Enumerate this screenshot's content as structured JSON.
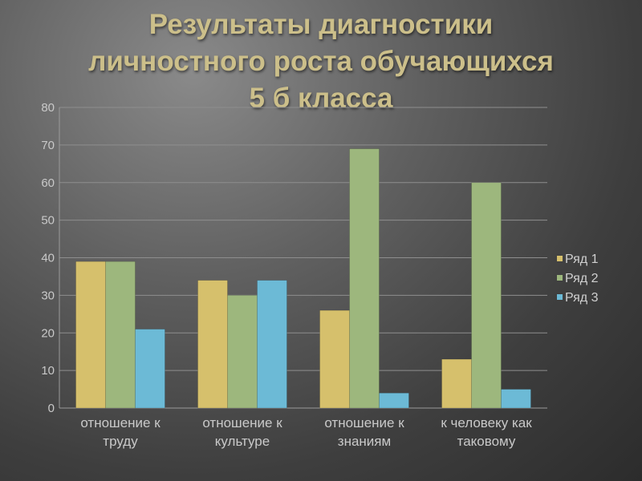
{
  "title_lines": [
    "Результаты диагностики",
    "личностного роста обучающихся",
    "5 б класса"
  ],
  "chart_data": {
    "type": "bar",
    "categories": [
      [
        "отношение к",
        "труду"
      ],
      [
        "отношение к",
        "культуре"
      ],
      [
        "отношение к",
        "знаниям"
      ],
      [
        "к человеку как",
        "таковому"
      ]
    ],
    "series": [
      {
        "name": "Ряд 1",
        "color": "#d6c06c",
        "values": [
          39,
          34,
          26,
          13
        ]
      },
      {
        "name": "Ряд 2",
        "color": "#9db77d",
        "values": [
          39,
          30,
          69,
          60
        ]
      },
      {
        "name": "Ряд 3",
        "color": "#6cbad6",
        "values": [
          21,
          34,
          4,
          5
        ]
      }
    ],
    "ylim": [
      0,
      80
    ],
    "yticks": [
      0,
      10,
      20,
      30,
      40,
      50,
      60,
      70,
      80
    ],
    "grid": true,
    "legend": "right"
  }
}
